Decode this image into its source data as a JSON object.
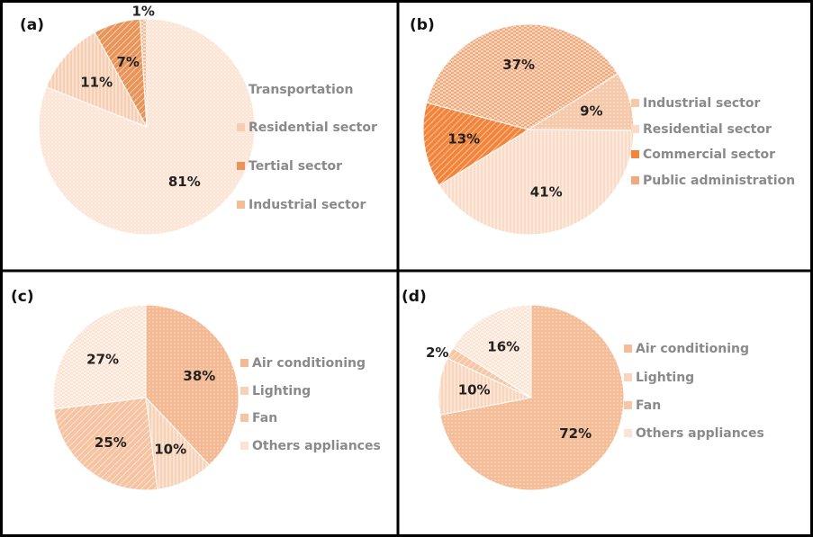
{
  "chart_data": [
    {
      "type": "pie",
      "title": "(a)",
      "categories": [
        "Transportation",
        "Residential sector",
        "Tertial sector",
        "Industrial sector"
      ],
      "values": [
        81,
        11,
        7,
        1
      ],
      "value_labels": [
        "81%",
        "11%",
        "7%",
        "1%"
      ],
      "colors": [
        "#fbe6d8",
        "#f6cfb3",
        "#e9955a",
        "#f3bd96"
      ]
    },
    {
      "type": "pie",
      "title": "(b)",
      "categories": [
        "Industrial sector",
        "Residential sector",
        "Commercial sector",
        "Public administration"
      ],
      "values": [
        9,
        41,
        13,
        37
      ],
      "value_labels": [
        "9%",
        "41%",
        "13%",
        "37%"
      ],
      "colors": [
        "#f6c9aa",
        "#f9dcc7",
        "#f4843a",
        "#f2aa7c"
      ]
    },
    {
      "type": "pie",
      "title": "(c)",
      "categories": [
        "Air conditioning",
        "Lighting",
        "Fan",
        "Others appliances"
      ],
      "values": [
        38,
        10,
        25,
        27
      ],
      "value_labels": [
        "38%",
        "10%",
        "25%",
        "27%"
      ],
      "colors": [
        "#f4b992",
        "#f7d2b7",
        "#f6c4a3",
        "#fbe3d2"
      ]
    },
    {
      "type": "pie",
      "title": "(d)",
      "categories": [
        "Air conditioning",
        "Lighting",
        "Fan",
        "Others appliances"
      ],
      "values": [
        72,
        10,
        2,
        16
      ],
      "value_labels": [
        "72%",
        "10%",
        "2%",
        "16%"
      ],
      "colors": [
        "#f5bd97",
        "#f8d5bc",
        "#f6c6a5",
        "#fbe4d4"
      ]
    }
  ]
}
